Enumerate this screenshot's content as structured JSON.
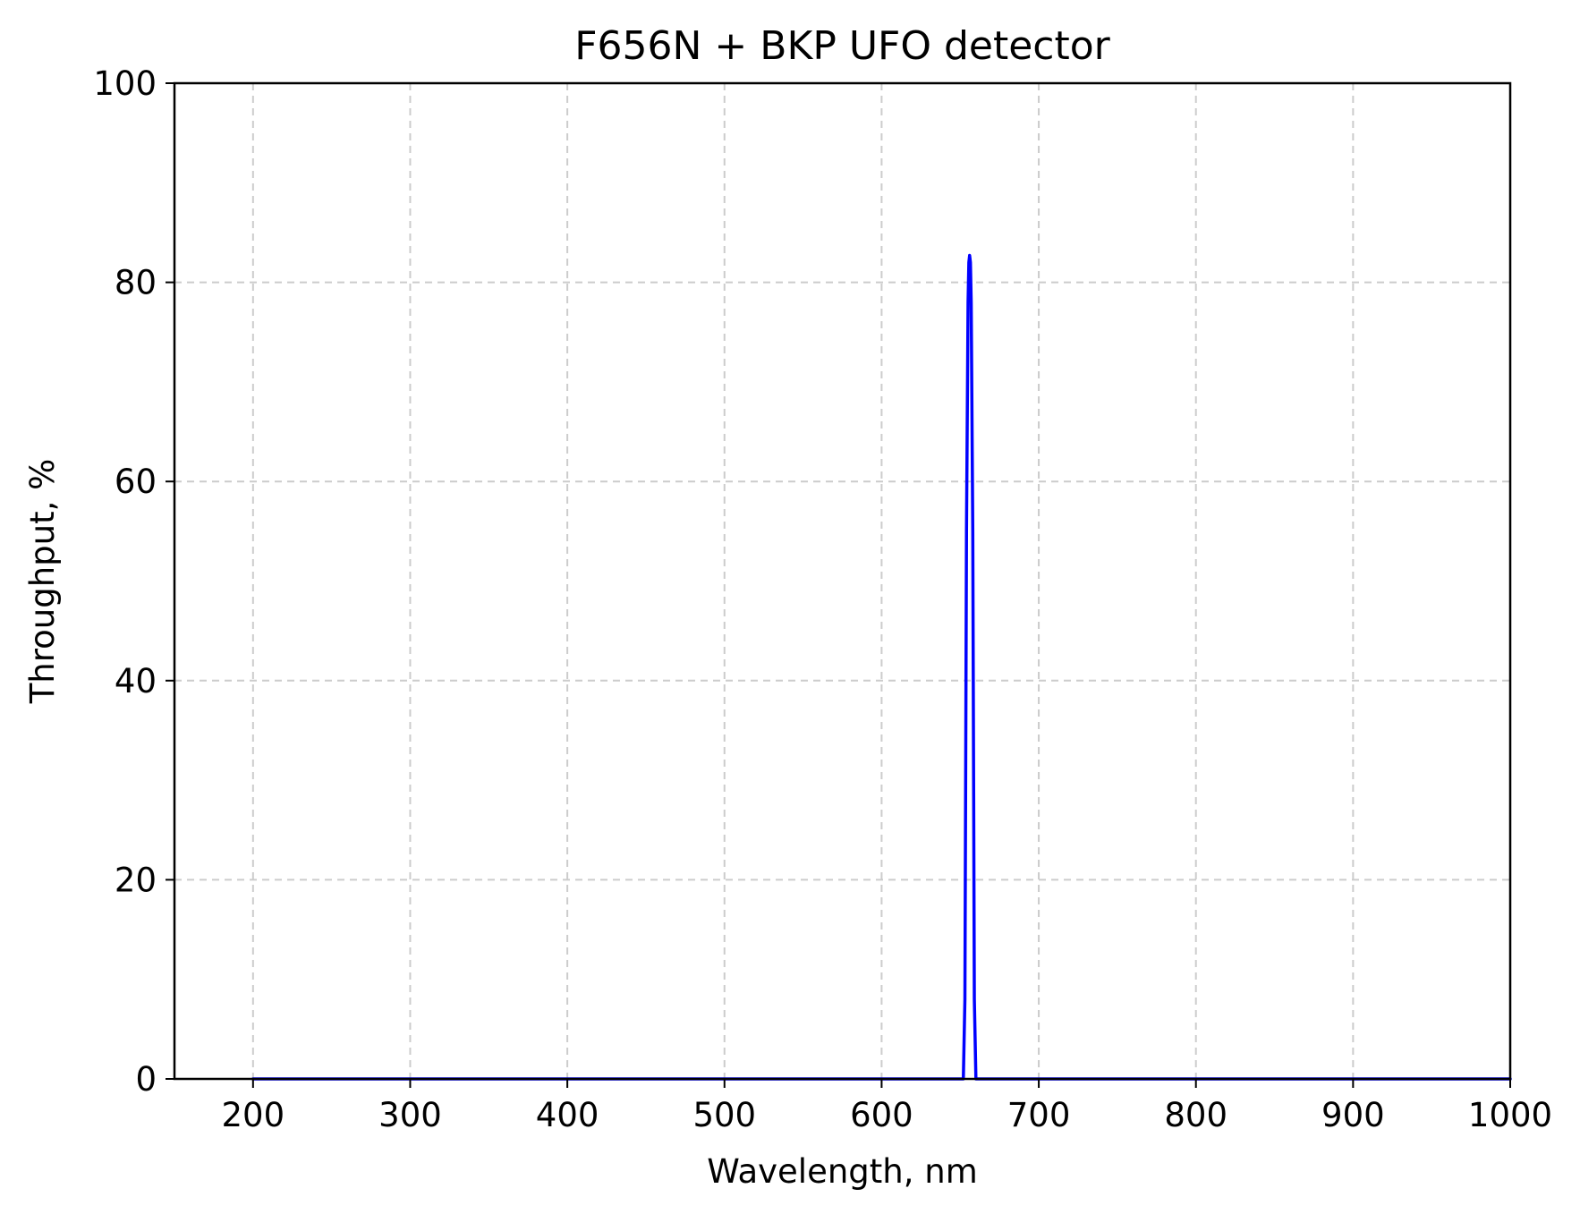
{
  "chart_data": {
    "type": "line",
    "title": "F656N + BKP UFO detector",
    "xlabel": "Wavelength, nm",
    "ylabel": "Throughput, %",
    "xlim": [
      150,
      1000
    ],
    "ylim": [
      0,
      100
    ],
    "xticks": [
      200,
      300,
      400,
      500,
      600,
      700,
      800,
      900,
      1000
    ],
    "yticks": [
      0,
      20,
      40,
      60,
      80,
      100
    ],
    "grid": true,
    "grid_style": "dashed",
    "legend": "none",
    "series": [
      {
        "color": "#0000ff",
        "x": [
          200,
          300,
          400,
          500,
          600,
          650,
          652,
          653,
          654,
          655,
          655.5,
          656,
          656.5,
          657,
          658,
          659,
          660,
          662,
          700,
          800,
          900,
          1000
        ],
        "y": [
          0,
          0,
          0,
          0,
          0,
          0,
          0,
          8,
          55,
          78,
          82,
          82.7,
          82,
          78,
          55,
          8,
          0,
          0,
          0,
          0,
          0,
          0
        ]
      }
    ]
  }
}
